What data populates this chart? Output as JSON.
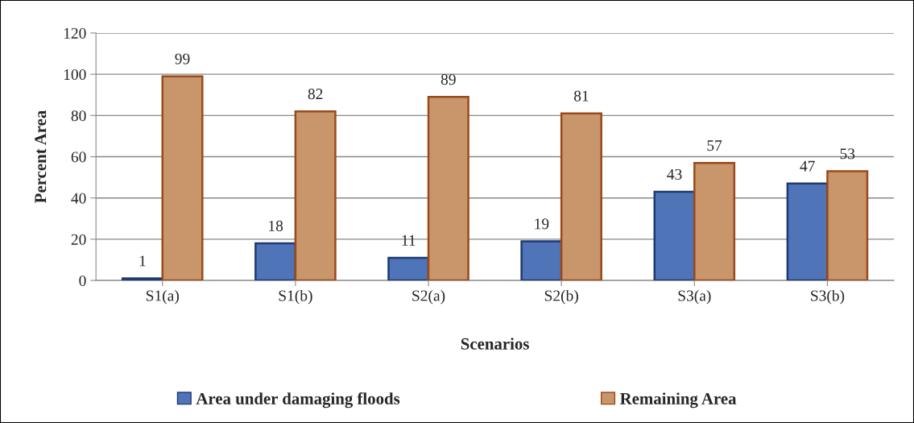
{
  "chart_data": {
    "type": "bar",
    "xlabel": "Scenarios",
    "ylabel": "Percent Area",
    "categories": [
      "S1(a)",
      "S1(b)",
      "S2(a)",
      "S2(b)",
      "S3(a)",
      "S3(b)"
    ],
    "series": [
      {
        "name": "Area under damaging floods",
        "color": "#4f74b8",
        "values": [
          1,
          18,
          11,
          19,
          43,
          47
        ]
      },
      {
        "name": "Remaining Area",
        "color": "#c9956a",
        "values": [
          99,
          82,
          89,
          81,
          57,
          53
        ]
      }
    ],
    "ylim": [
      0,
      120
    ],
    "yticks": [
      0,
      20,
      40,
      60,
      80,
      100,
      120
    ],
    "grid": "y",
    "legend": "bottom",
    "data_labels": true
  }
}
